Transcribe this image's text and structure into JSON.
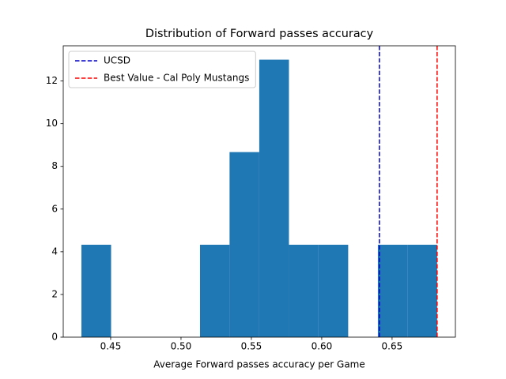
{
  "chart_data": {
    "type": "histogram",
    "title": "Distribution of Forward passes accuracy",
    "xlabel": "Average Forward passes accuracy per Game",
    "bins": [
      0.4292,
      0.4503,
      0.4713,
      0.4924,
      0.5135,
      0.5345,
      0.5556,
      0.5767,
      0.5977,
      0.6188,
      0.6399,
      0.6609,
      0.682
    ],
    "counts": [
      4.33,
      0,
      0,
      0,
      4.33,
      8.67,
      13,
      4.33,
      4.33,
      0,
      4.33,
      4.33
    ],
    "color": "#1f77b4",
    "xlim": [
      0.4163,
      0.695
    ],
    "ylim": [
      0,
      13.65
    ],
    "xticks": [
      0.45,
      {
        "value": 0.5,
        "label": "0.50"
      },
      0.55,
      {
        "value": 0.6,
        "label": "0.60"
      },
      0.65
    ],
    "yticks": [
      0,
      2,
      4,
      6,
      8,
      10,
      12
    ],
    "lines": [
      {
        "name": "UCSD",
        "value": 0.641,
        "color": "#0000cc"
      },
      {
        "name": "Best Value - Cal Poly Mustangs",
        "value": 0.682,
        "color": "#ff0000"
      }
    ],
    "legend": "upper left"
  }
}
